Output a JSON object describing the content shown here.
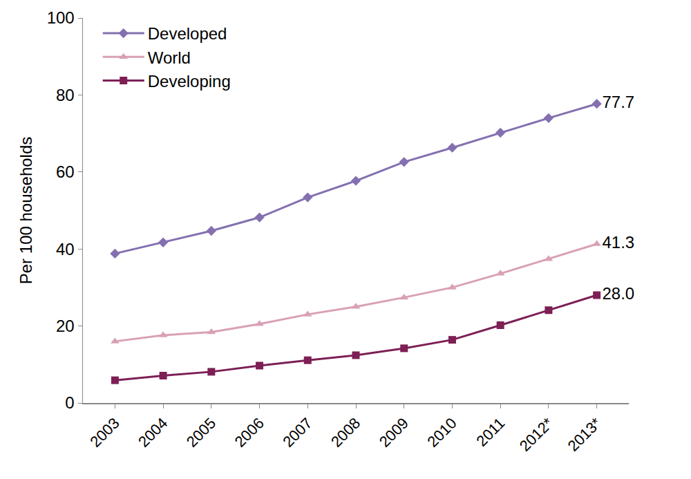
{
  "chart_data": {
    "type": "line",
    "y_label": "Per 100 households",
    "categories": [
      "2003",
      "2004",
      "2005",
      "2006",
      "2007",
      "2008",
      "2009",
      "2010",
      "2011",
      "2012*",
      "2013*"
    ],
    "series": [
      {
        "name": "Developed",
        "color": "#8470b0",
        "marker": "diamond",
        "values": [
          38.8,
          41.7,
          44.7,
          48.2,
          53.4,
          57.7,
          62.6,
          66.3,
          70.2,
          74.0,
          77.7
        ],
        "value_labels": [
          null,
          null,
          null,
          null,
          null,
          null,
          null,
          null,
          null,
          null,
          "77.7"
        ]
      },
      {
        "name": "World",
        "color": "#d9a0b6",
        "marker": "triangle-up",
        "values": [
          16.0,
          17.6,
          18.4,
          20.5,
          23.0,
          25.0,
          27.4,
          30.0,
          33.6,
          37.4,
          41.3
        ],
        "value_labels": [
          null,
          null,
          null,
          null,
          null,
          null,
          null,
          null,
          null,
          null,
          "41.3"
        ]
      },
      {
        "name": "Developing",
        "color": "#7d1f55",
        "marker": "square",
        "values": [
          5.9,
          7.1,
          8.1,
          9.7,
          11.1,
          12.4,
          14.2,
          16.4,
          20.2,
          24.1,
          28.0
        ],
        "value_labels": [
          null,
          null,
          null,
          null,
          null,
          null,
          null,
          null,
          null,
          null,
          "28.0"
        ]
      }
    ],
    "ylim": [
      0,
      100
    ],
    "yticks": [
      0,
      20,
      40,
      60,
      80,
      100
    ],
    "grid": false,
    "legend": "top left"
  }
}
